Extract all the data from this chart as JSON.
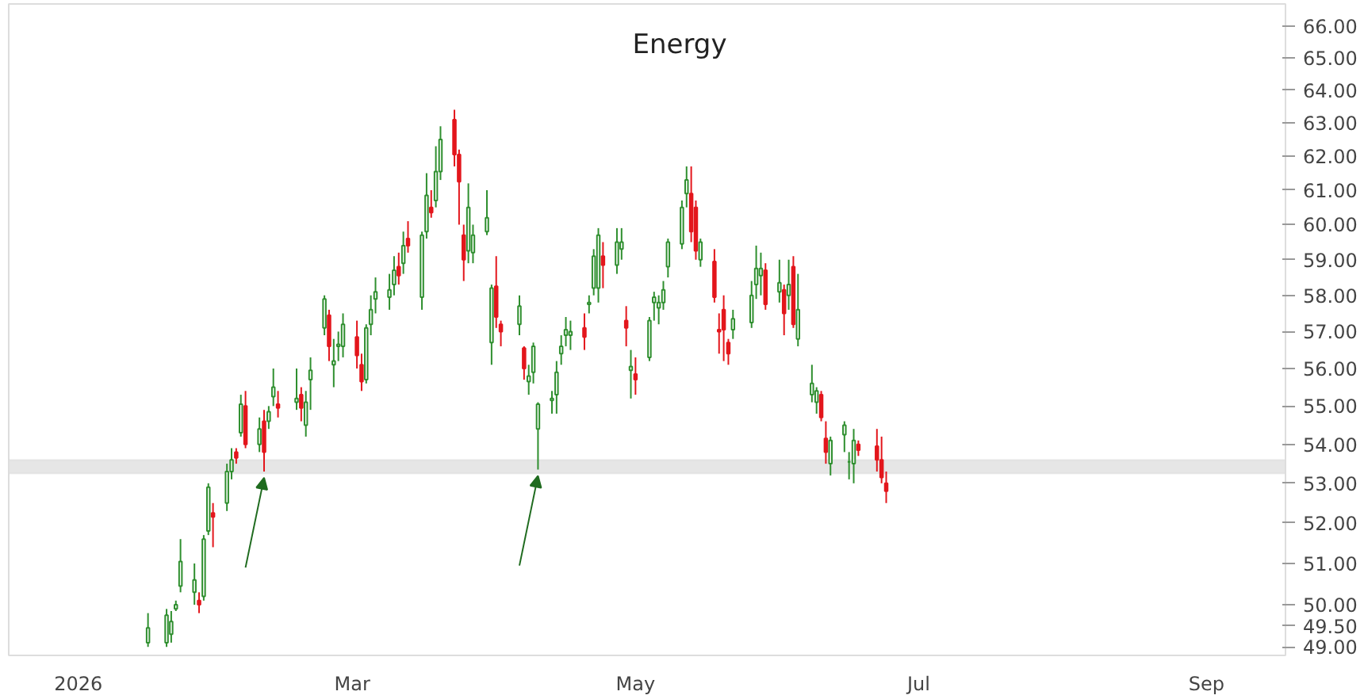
{
  "chart_data": {
    "type": "candlestick",
    "title": "Energy",
    "x": [
      "2026-01-16",
      "2026-01-20",
      "2026-01-21",
      "2026-01-22",
      "2026-01-23",
      "2026-01-26",
      "2026-01-27",
      "2026-01-28",
      "2026-01-29",
      "2026-01-30",
      "2026-02-02",
      "2026-02-03",
      "2026-02-04",
      "2026-02-05",
      "2026-02-06",
      "2026-02-09",
      "2026-02-10",
      "2026-02-11",
      "2026-02-12",
      "2026-02-13",
      "2026-02-17",
      "2026-02-18",
      "2026-02-19",
      "2026-02-20",
      "2026-02-23",
      "2026-02-24",
      "2026-02-25",
      "2026-02-26",
      "2026-02-27",
      "2026-03-02",
      "2026-03-03",
      "2026-03-04",
      "2026-03-05",
      "2026-03-06",
      "2026-03-09",
      "2026-03-10",
      "2026-03-11",
      "2026-03-12",
      "2026-03-13",
      "2026-03-16",
      "2026-03-17",
      "2026-03-18",
      "2026-03-19",
      "2026-03-20",
      "2026-03-23",
      "2026-03-24",
      "2026-03-25",
      "2026-03-26",
      "2026-03-27",
      "2026-03-30",
      "2026-03-31",
      "2026-04-01",
      "2026-04-02",
      "2026-04-06",
      "2026-04-07",
      "2026-04-08",
      "2026-04-09",
      "2026-04-10",
      "2026-04-13",
      "2026-04-14",
      "2026-04-15",
      "2026-04-16",
      "2026-04-17",
      "2026-04-20",
      "2026-04-21",
      "2026-04-22",
      "2026-04-23",
      "2026-04-24",
      "2026-04-27",
      "2026-04-28",
      "2026-04-29",
      "2026-04-30",
      "2026-05-01",
      "2026-05-04",
      "2026-05-05",
      "2026-05-06",
      "2026-05-07",
      "2026-05-08",
      "2026-05-11",
      "2026-05-12",
      "2026-05-13",
      "2026-05-14",
      "2026-05-15",
      "2026-05-18",
      "2026-05-19",
      "2026-05-20",
      "2026-05-21",
      "2026-05-22",
      "2026-05-26",
      "2026-05-27",
      "2026-05-28",
      "2026-05-29",
      "2026-06-01",
      "2026-06-02",
      "2026-06-03",
      "2026-06-04",
      "2026-06-05",
      "2026-06-08",
      "2026-06-09",
      "2026-06-10",
      "2026-06-11",
      "2026-06-12",
      "2026-06-15",
      "2026-06-16",
      "2026-06-17",
      "2026-06-18",
      "2026-06-22",
      "2026-06-23",
      "2026-06-24"
    ],
    "ohlc": [
      [
        49.1,
        49.8,
        49.0,
        49.45
      ],
      [
        49.1,
        49.9,
        49.0,
        49.75
      ],
      [
        49.3,
        49.85,
        49.1,
        49.6
      ],
      [
        49.9,
        50.1,
        49.85,
        50.0
      ],
      [
        50.45,
        51.6,
        50.3,
        51.05
      ],
      [
        50.3,
        51.0,
        50.0,
        50.6
      ],
      [
        50.1,
        50.3,
        49.8,
        50.0
      ],
      [
        50.2,
        51.7,
        50.1,
        51.6
      ],
      [
        51.8,
        53.0,
        51.7,
        52.9
      ],
      [
        52.25,
        52.5,
        51.4,
        52.15
      ],
      [
        52.5,
        53.5,
        52.3,
        53.3
      ],
      [
        53.3,
        53.9,
        53.1,
        53.6
      ],
      [
        53.8,
        53.9,
        53.5,
        53.65
      ],
      [
        54.3,
        55.3,
        54.2,
        55.05
      ],
      [
        55.0,
        55.4,
        53.9,
        54.0
      ],
      [
        54.0,
        54.7,
        53.8,
        54.4
      ],
      [
        54.6,
        54.9,
        53.3,
        53.8
      ],
      [
        54.6,
        55.0,
        54.4,
        54.85
      ],
      [
        55.25,
        56.0,
        55.0,
        55.5
      ],
      [
        55.05,
        55.4,
        54.7,
        54.95
      ],
      [
        55.1,
        56.0,
        54.9,
        55.2
      ],
      [
        55.3,
        55.5,
        54.6,
        54.95
      ],
      [
        54.5,
        55.4,
        54.2,
        55.1
      ],
      [
        55.7,
        56.3,
        54.9,
        55.95
      ],
      [
        57.1,
        58.0,
        56.9,
        57.9
      ],
      [
        57.45,
        57.6,
        56.2,
        56.6
      ],
      [
        56.1,
        56.8,
        55.5,
        56.2
      ],
      [
        56.6,
        57.0,
        56.2,
        56.65
      ],
      [
        56.6,
        57.5,
        56.3,
        57.2
      ],
      [
        56.85,
        57.3,
        56.0,
        56.35
      ],
      [
        56.1,
        56.4,
        55.4,
        55.65
      ],
      [
        55.7,
        57.2,
        55.6,
        57.1
      ],
      [
        57.2,
        58.0,
        56.9,
        57.6
      ],
      [
        57.9,
        58.5,
        57.5,
        58.1
      ],
      [
        57.95,
        58.6,
        57.6,
        58.15
      ],
      [
        58.3,
        59.1,
        58.0,
        58.7
      ],
      [
        58.8,
        59.2,
        58.3,
        58.55
      ],
      [
        58.9,
        59.8,
        58.6,
        59.4
      ],
      [
        59.6,
        60.1,
        59.2,
        59.4
      ],
      [
        57.95,
        59.8,
        57.6,
        59.7
      ],
      [
        59.8,
        61.5,
        59.6,
        60.85
      ],
      [
        60.5,
        61.0,
        60.2,
        60.35
      ],
      [
        60.7,
        62.3,
        60.5,
        61.55
      ],
      [
        61.55,
        62.9,
        61.3,
        62.5
      ],
      [
        63.1,
        63.4,
        61.7,
        62.05
      ],
      [
        62.05,
        62.2,
        60.0,
        61.25
      ],
      [
        59.7,
        60.0,
        58.4,
        59.0
      ],
      [
        59.25,
        61.2,
        58.9,
        60.5
      ],
      [
        59.2,
        60.0,
        58.9,
        59.7
      ],
      [
        59.8,
        61.0,
        59.7,
        60.2
      ],
      [
        56.7,
        58.3,
        56.1,
        58.2
      ],
      [
        58.25,
        59.1,
        57.1,
        57.4
      ],
      [
        57.2,
        57.3,
        56.6,
        57.0
      ],
      [
        57.2,
        58.0,
        56.9,
        57.7
      ],
      [
        56.55,
        56.6,
        55.7,
        56.0
      ],
      [
        55.65,
        56.1,
        55.3,
        55.8
      ],
      [
        55.9,
        56.7,
        55.6,
        56.6
      ],
      [
        54.4,
        55.1,
        53.35,
        55.05
      ],
      [
        55.15,
        55.4,
        54.8,
        55.2
      ],
      [
        55.3,
        56.2,
        54.8,
        55.9
      ],
      [
        56.4,
        56.9,
        56.1,
        56.6
      ],
      [
        56.9,
        57.4,
        56.6,
        57.05
      ],
      [
        56.9,
        57.3,
        56.5,
        57.0
      ],
      [
        57.1,
        57.5,
        56.5,
        56.85
      ],
      [
        57.75,
        58.0,
        57.5,
        57.8
      ],
      [
        58.2,
        59.3,
        58.0,
        59.1
      ],
      [
        58.2,
        59.9,
        57.8,
        59.7
      ],
      [
        59.1,
        59.5,
        58.2,
        58.85
      ],
      [
        58.85,
        59.9,
        58.6,
        59.5
      ],
      [
        59.3,
        59.9,
        59.0,
        59.5
      ],
      [
        57.3,
        57.7,
        56.6,
        57.1
      ],
      [
        55.95,
        56.5,
        55.2,
        56.05
      ],
      [
        55.85,
        56.3,
        55.3,
        55.7
      ],
      [
        56.3,
        57.4,
        56.2,
        57.3
      ],
      [
        57.8,
        58.1,
        57.3,
        57.95
      ],
      [
        57.65,
        58.0,
        57.2,
        57.8
      ],
      [
        57.8,
        58.4,
        57.6,
        58.15
      ],
      [
        58.8,
        59.6,
        58.5,
        59.5
      ],
      [
        59.45,
        60.7,
        59.3,
        60.5
      ],
      [
        60.9,
        61.7,
        60.5,
        61.3
      ],
      [
        60.9,
        61.7,
        59.5,
        59.8
      ],
      [
        60.5,
        60.7,
        59.0,
        59.25
      ],
      [
        59.0,
        59.6,
        58.8,
        59.5
      ],
      [
        58.95,
        59.3,
        57.8,
        57.95
      ],
      [
        57.05,
        57.5,
        56.4,
        57.0
      ],
      [
        57.6,
        58.0,
        56.2,
        57.05
      ],
      [
        56.7,
        56.8,
        56.1,
        56.4
      ],
      [
        57.05,
        57.6,
        56.8,
        57.35
      ],
      [
        57.25,
        58.4,
        57.1,
        58.0
      ],
      [
        58.3,
        59.4,
        57.9,
        58.75
      ],
      [
        58.55,
        59.2,
        58.0,
        58.75
      ],
      [
        58.7,
        58.9,
        57.6,
        57.75
      ],
      [
        58.1,
        59.0,
        57.8,
        58.35
      ],
      [
        58.15,
        58.3,
        56.9,
        57.5
      ],
      [
        58.0,
        59.0,
        57.6,
        58.3
      ],
      [
        58.8,
        59.1,
        57.1,
        57.2
      ],
      [
        56.8,
        58.6,
        56.6,
        57.6
      ],
      [
        55.3,
        56.1,
        55.1,
        55.6
      ],
      [
        55.1,
        55.5,
        54.8,
        55.4
      ],
      [
        55.3,
        55.4,
        54.6,
        54.7
      ],
      [
        54.15,
        54.6,
        53.5,
        53.8
      ],
      [
        53.5,
        54.2,
        53.2,
        54.1
      ],
      [
        54.25,
        54.6,
        53.8,
        54.5
      ],
      [
        53.55,
        53.8,
        53.1,
        53.55
      ],
      [
        53.5,
        54.4,
        53.0,
        54.1
      ],
      [
        54.0,
        54.1,
        53.7,
        53.85
      ],
      [
        53.95,
        54.4,
        53.3,
        53.6
      ],
      [
        53.6,
        54.2,
        53.0,
        53.15
      ],
      [
        53.0,
        53.3,
        52.5,
        52.8
      ]
    ],
    "colors": [
      "#2f8f2f",
      "#2f8f2f",
      "#2f8f2f",
      "#2f8f2f",
      "#2f8f2f",
      "#2f8f2f",
      "#e3161c",
      "#2f8f2f",
      "#2f8f2f",
      "#e3161c",
      "#2f8f2f",
      "#2f8f2f",
      "#e3161c",
      "#2f8f2f",
      "#e3161c",
      "#2f8f2f",
      "#e3161c",
      "#2f8f2f",
      "#2f8f2f",
      "#e3161c",
      "#2f8f2f",
      "#e3161c",
      "#2f8f2f",
      "#2f8f2f",
      "#2f8f2f",
      "#e3161c",
      "#2f8f2f",
      "#2f8f2f",
      "#2f8f2f",
      "#e3161c",
      "#e3161c",
      "#2f8f2f",
      "#2f8f2f",
      "#2f8f2f",
      "#2f8f2f",
      "#2f8f2f",
      "#e3161c",
      "#2f8f2f",
      "#e3161c",
      "#2f8f2f",
      "#2f8f2f",
      "#e3161c",
      "#2f8f2f",
      "#2f8f2f",
      "#e3161c",
      "#e3161c",
      "#e3161c",
      "#2f8f2f",
      "#2f8f2f",
      "#2f8f2f",
      "#2f8f2f",
      "#e3161c",
      "#e3161c",
      "#2f8f2f",
      "#e3161c",
      "#2f8f2f",
      "#2f8f2f",
      "#2f8f2f",
      "#2f8f2f",
      "#2f8f2f",
      "#2f8f2f",
      "#2f8f2f",
      "#2f8f2f",
      "#e3161c",
      "#2f8f2f",
      "#2f8f2f",
      "#2f8f2f",
      "#e3161c",
      "#2f8f2f",
      "#2f8f2f",
      "#e3161c",
      "#2f8f2f",
      "#e3161c",
      "#2f8f2f",
      "#2f8f2f",
      "#2f8f2f",
      "#2f8f2f",
      "#2f8f2f",
      "#2f8f2f",
      "#2f8f2f",
      "#e3161c",
      "#e3161c",
      "#2f8f2f",
      "#e3161c",
      "#e3161c",
      "#e3161c",
      "#e3161c",
      "#2f8f2f",
      "#2f8f2f",
      "#2f8f2f",
      "#2f8f2f",
      "#e3161c",
      "#2f8f2f",
      "#e3161c",
      "#2f8f2f",
      "#e3161c",
      "#2f8f2f",
      "#2f8f2f",
      "#2f8f2f",
      "#e3161c",
      "#e3161c",
      "#2f8f2f",
      "#2f8f2f",
      "#2f8f2f",
      "#2f8f2f",
      "#e3161c",
      "#e3161c",
      "#e3161c",
      "#e3161c"
    ],
    "log": "y",
    "xlim": [
      "2025-12-17",
      "2026-09-18"
    ],
    "xticks": [
      {
        "value": "2026-01-01",
        "label": "2026"
      },
      {
        "value": "2026-03-01",
        "label": "Mar"
      },
      {
        "value": "2026-05-01",
        "label": "May"
      },
      {
        "value": "2026-07-01",
        "label": "Jul"
      },
      {
        "value": "2026-09-01",
        "label": "Sep"
      }
    ],
    "ylim": [
      48.8,
      66.7
    ],
    "yticks": [
      {
        "value": 49,
        "label": "49.00"
      },
      {
        "value": 49.5,
        "label": "49.50"
      },
      {
        "value": 50,
        "label": "50.00"
      },
      {
        "value": 51,
        "label": "51.00"
      },
      {
        "value": 52,
        "label": "52.00"
      },
      {
        "value": 53,
        "label": "53.00"
      },
      {
        "value": 54,
        "label": "54.00"
      },
      {
        "value": 55,
        "label": "55.00"
      },
      {
        "value": 56,
        "label": "56.00"
      },
      {
        "value": 57,
        "label": "57.00"
      },
      {
        "value": 58,
        "label": "58.00"
      },
      {
        "value": 59,
        "label": "59.00"
      },
      {
        "value": 60,
        "label": "60.00"
      },
      {
        "value": 61,
        "label": "61.00"
      },
      {
        "value": 62,
        "label": "62.00"
      },
      {
        "value": 63,
        "label": "63.00"
      },
      {
        "value": 64,
        "label": "64.00"
      },
      {
        "value": 65,
        "label": "65.00"
      },
      {
        "value": 66,
        "label": "66.00"
      }
    ],
    "bands": [
      {
        "axis": "y",
        "from": 53.25,
        "to": 53.6,
        "color": "#e6e6e6"
      }
    ],
    "grid": false
  }
}
